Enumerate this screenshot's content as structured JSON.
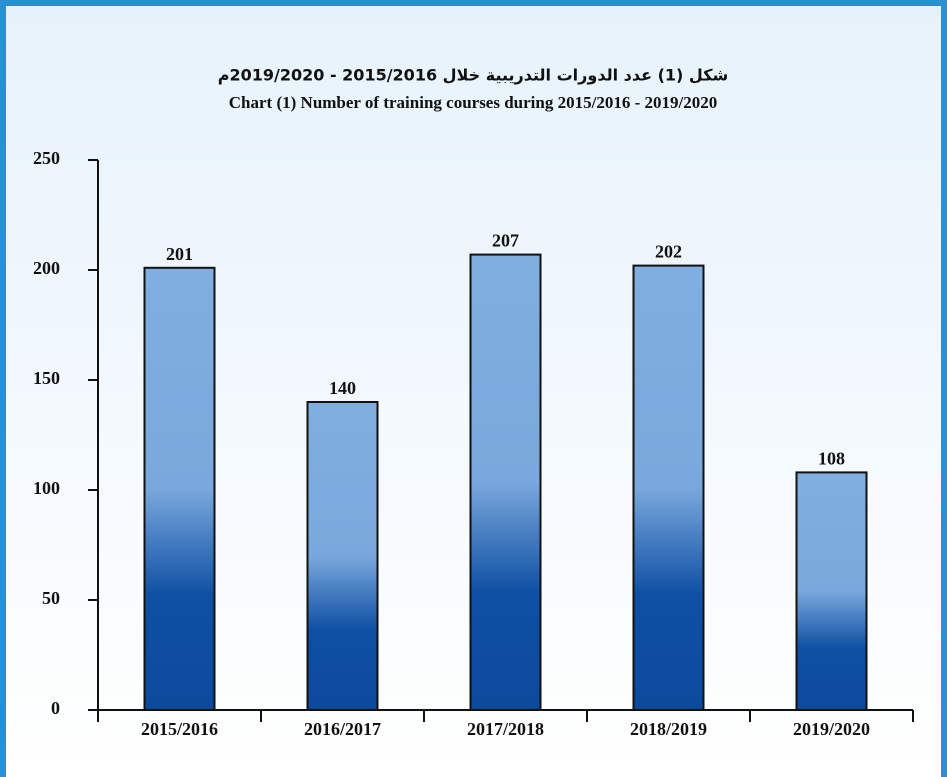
{
  "chart_data": {
    "type": "bar",
    "title": "شكل (1) عدد الدورات التدريبية خلال 2015/2016 - 2019/2020م",
    "subtitle": "Chart (1) Number of training courses during 2015/2016 - 2019/2020",
    "categories": [
      "2015/2016",
      "2016/2017",
      "2017/2018",
      "2018/2019",
      "2019/2020"
    ],
    "values": [
      201,
      140,
      207,
      202,
      108
    ],
    "color": "#7aa8dc",
    "ylim": [
      0,
      250
    ],
    "yticks": [
      0,
      50,
      100,
      150,
      200,
      250
    ],
    "grid": false
  }
}
